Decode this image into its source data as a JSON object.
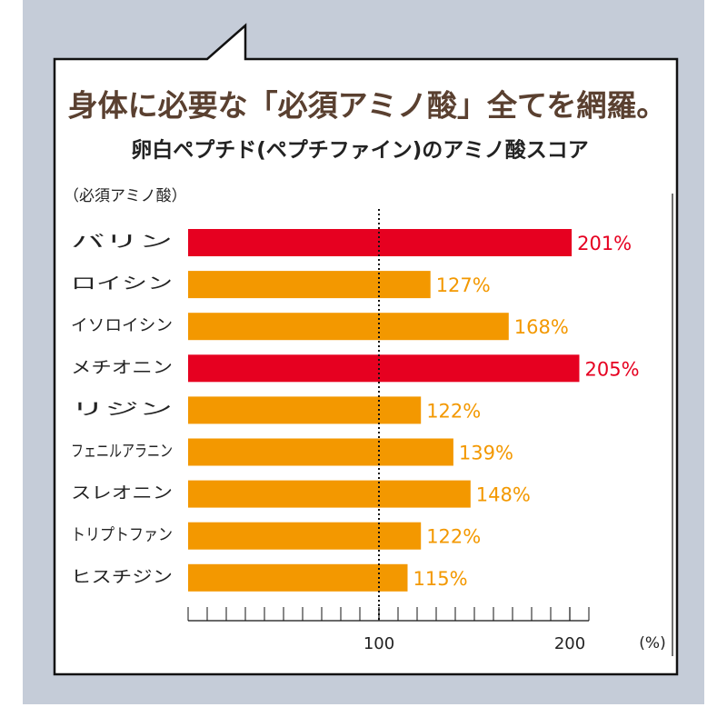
{
  "chart_data": {
    "type": "hbar",
    "title": "身体に必要な「必須アミノ酸」全てを網羅。",
    "subtitle": "卵白ペプチド(ペプチファイン)のアミノ酸スコア",
    "y_label": "（必須アミノ酸）",
    "x_label": "(%)",
    "categories": [
      "バリン",
      "ロイシン",
      "イソロイシン",
      "メチオニン",
      "リジン",
      "フェニルアラニン",
      "スレオニン",
      "トリプトファン",
      "ヒスチジン"
    ],
    "values": [
      201,
      127,
      168,
      205,
      122,
      139,
      148,
      122,
      115
    ],
    "value_labels": [
      "201%",
      "127%",
      "168%",
      "205%",
      "122%",
      "139%",
      "148%",
      "122%",
      "115%"
    ],
    "colors": [
      "#e60020",
      "#f39800",
      "#f39800",
      "#e60020",
      "#f39800",
      "#f39800",
      "#f39800",
      "#f39800",
      "#f39800"
    ],
    "xlim": [
      0,
      210
    ],
    "xticks": [
      100,
      200
    ],
    "xminorticks": [
      0,
      10,
      20,
      30,
      40,
      50,
      60,
      70,
      80,
      90,
      100,
      110,
      120,
      130,
      140,
      150,
      160,
      170,
      180,
      190,
      200,
      210
    ],
    "reference_line": 100
  }
}
